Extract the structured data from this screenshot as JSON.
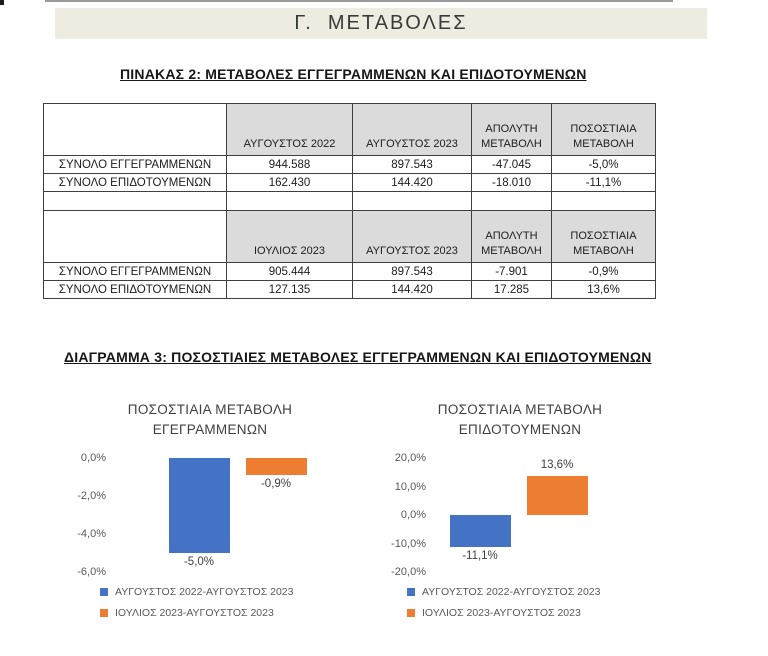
{
  "page": {
    "section_title": "Γ.  ΜΕΤΑΒΟΛΕΣ",
    "table_heading": "ΠΙΝΑΚΑΣ 2: ΜΕΤΑΒΟΛΕΣ ΕΓΓΕΓΡΑΜΜΕΝΩΝ ΚΑΙ ΕΠΙΔΟΤΟΥΜΕΝΩΝ",
    "diagram_heading": "ΔΙΑΓΡΑΜΜΑ 3: ΠΟΣΟΣΤΙΑΙΕΣ ΜΕΤΑΒΟΛΕΣ ΕΓΓΕΓΡΑΜΜΕΝΩΝ ΚΑΙ ΕΠΙΔΟΤΟΥΜΕΝΩΝ"
  },
  "colors": {
    "series_blue": "#4472C4",
    "series_orange": "#ED7D31",
    "table_header_bg": "#DBDBDB",
    "title_bar_bg": "#EEECE1"
  },
  "table": {
    "sections": [
      {
        "headers": [
          "",
          "ΑΥΓΟΥΣΤΟΣ 2022",
          "ΑΥΓΟΥΣΤΟΣ 2023",
          "ΑΠΟΛΥΤΗ ΜΕΤΑΒΟΛΗ",
          "ΠΟΣΟΣΤΙΑΙΑ ΜΕΤΑΒΟΛΗ"
        ],
        "rows": [
          [
            "ΣΥΝΟΛΟ ΕΓΓΕΓΡΑΜΜΕΝΩΝ",
            "944.588",
            "897.543",
            "-47.045",
            "-5,0%"
          ],
          [
            "ΣΥΝΟΛΟ ΕΠΙΔΟΤΟΥΜΕΝΩΝ",
            "162.430",
            "144.420",
            "-18.010",
            "-11,1%"
          ]
        ]
      },
      {
        "headers": [
          "",
          "ΙΟΥΛΙΟΣ 2023",
          "ΑΥΓΟΥΣΤΟΣ 2023",
          "ΑΠΟΛΥΤΗ ΜΕΤΑΒΟΛΗ",
          "ΠΟΣΟΣΤΙΑΙΑ ΜΕΤΑΒΟΛΗ"
        ],
        "rows": [
          [
            "ΣΥΝΟΛΟ ΕΓΓΕΓΡΑΜΜΕΝΩΝ",
            "905.444",
            "897.543",
            "-7.901",
            "-0,9%"
          ],
          [
            "ΣΥΝΟΛΟ ΕΠΙΔΟΤΟΥΜΕΝΩΝ",
            "127.135",
            "144.420",
            "17.285",
            "13,6%"
          ]
        ]
      }
    ]
  },
  "chart_data": [
    {
      "type": "bar",
      "title": "ΠΟΣΟΣΤΙΑΙΑ ΜΕΤΑΒΟΛΗ ΕΓΕΓΡΑΜΜΕΝΩΝ",
      "title_lines": [
        "ΠΟΣΟΣΤΙΑΙΑ ΜΕΤΑΒΟΛΗ",
        "ΕΓΕΓΡΑΜΜΕΝΩΝ"
      ],
      "categories": [
        "ΑΥΓΟΥΣΤΟΣ 2022-ΑΥΓΟΥΣΤΟΣ 2023",
        "ΙΟΥΛΙΟΣ 2023-ΑΥΓΟΥΣΤΟΣ 2023"
      ],
      "values": [
        -5.0,
        -0.9
      ],
      "value_labels": [
        "-5,0%",
        "-0,9%"
      ],
      "bar_colors": [
        "#4472C4",
        "#ED7D31"
      ],
      "xlabel": "",
      "ylabel": "",
      "ylim": [
        -6,
        0
      ],
      "yticks": [
        {
          "value": 0,
          "label": "0,0%"
        },
        {
          "value": -2,
          "label": "-2,0%"
        },
        {
          "value": -4,
          "label": "-4,0%"
        },
        {
          "value": -6,
          "label": "-6,0%"
        }
      ],
      "grid": false,
      "legend_position": "bottom-left"
    },
    {
      "type": "bar",
      "title": "ΠΟΣΟΣΤΙΑΙΑ ΜΕΤΑΒΟΛΗ ΕΠΙΔΟΤΟΥΜΕΝΩΝ",
      "title_lines": [
        "ΠΟΣΟΣΤΙΑΙΑ ΜΕΤΑΒΟΛΗ",
        "ΕΠΙΔΟΤΟΥΜΕΝΩΝ"
      ],
      "categories": [
        "ΑΥΓΟΥΣΤΟΣ 2022-ΑΥΓΟΥΣΤΟΣ 2023",
        "ΙΟΥΛΙΟΣ 2023-ΑΥΓΟΥΣΤΟΣ 2023"
      ],
      "values": [
        -11.1,
        13.6
      ],
      "value_labels": [
        "-11,1%",
        "13,6%"
      ],
      "bar_colors": [
        "#4472C4",
        "#ED7D31"
      ],
      "xlabel": "",
      "ylabel": "",
      "ylim": [
        -20,
        20
      ],
      "yticks": [
        {
          "value": 20,
          "label": "20,0%"
        },
        {
          "value": 10,
          "label": "10,0%"
        },
        {
          "value": 0,
          "label": "0,0%"
        },
        {
          "value": -10,
          "label": "-10,0%"
        },
        {
          "value": -20,
          "label": "-20,0%"
        }
      ],
      "grid": false,
      "legend_position": "bottom-left"
    }
  ]
}
